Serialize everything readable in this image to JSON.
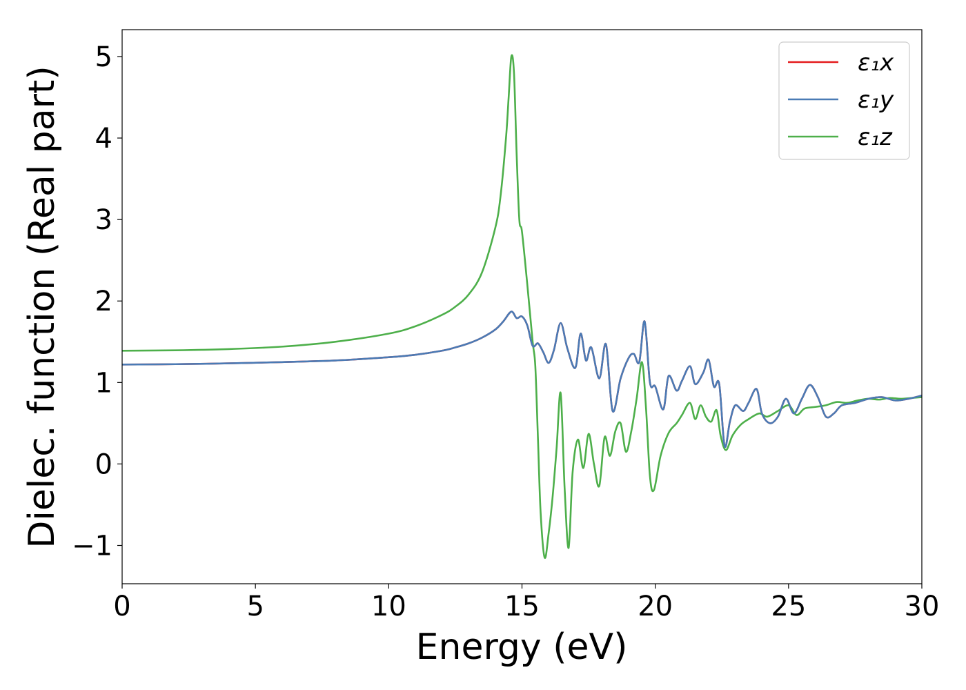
{
  "chart_data": {
    "type": "line",
    "title": "",
    "xlabel": "Energy (eV)",
    "ylabel": "Dielec. function (Real part)",
    "xlim": [
      0,
      30
    ],
    "ylim": [
      -1.47,
      5.33
    ],
    "xticks": [
      0,
      5,
      10,
      15,
      20,
      25,
      30
    ],
    "xtick_labels": [
      "0",
      "5",
      "10",
      "15",
      "20",
      "25",
      "30"
    ],
    "yticks": [
      -1,
      0,
      1,
      2,
      3,
      4,
      5
    ],
    "ytick_labels": [
      "−1",
      "0",
      "1",
      "2",
      "3",
      "4",
      "5"
    ],
    "grid": false,
    "legend_position": "top-right",
    "series": [
      {
        "name": "ε₁x",
        "color": "#e41a1c",
        "x": [
          0,
          2,
          4,
          6,
          8,
          10,
          11,
          12,
          12.5,
          13,
          13.5,
          14,
          14.3,
          14.6,
          14.8,
          15,
          15.2,
          15.4,
          15.6,
          15.8,
          16,
          16.2,
          16.45,
          16.7,
          17,
          17.2,
          17.4,
          17.6,
          17.9,
          18.15,
          18.4,
          18.7,
          19,
          19.2,
          19.4,
          19.6,
          19.8,
          20,
          20.3,
          20.5,
          20.8,
          21,
          21.3,
          21.5,
          21.8,
          22,
          22.2,
          22.4,
          22.6,
          22.8,
          23,
          23.3,
          23.5,
          23.8,
          24,
          24.3,
          24.6,
          24.9,
          25.2,
          25.5,
          25.8,
          26.1,
          26.4,
          26.7,
          27,
          27.5,
          28,
          28.5,
          29,
          29.5,
          30
        ],
        "values": [
          1.22,
          1.225,
          1.235,
          1.25,
          1.27,
          1.31,
          1.34,
          1.39,
          1.43,
          1.48,
          1.55,
          1.65,
          1.75,
          1.87,
          1.79,
          1.81,
          1.7,
          1.45,
          1.48,
          1.37,
          1.24,
          1.4,
          1.73,
          1.42,
          1.18,
          1.6,
          1.27,
          1.43,
          1.05,
          1.47,
          0.65,
          1.05,
          1.3,
          1.35,
          1.25,
          1.75,
          1.0,
          0.95,
          0.67,
          1.08,
          0.9,
          1.02,
          1.2,
          0.98,
          1.12,
          1.28,
          0.95,
          0.98,
          0.22,
          0.52,
          0.72,
          0.65,
          0.75,
          0.92,
          0.62,
          0.5,
          0.58,
          0.8,
          0.62,
          0.8,
          0.97,
          0.82,
          0.58,
          0.62,
          0.72,
          0.75,
          0.8,
          0.82,
          0.78,
          0.8,
          0.84
        ]
      },
      {
        "name": "ε₁y",
        "color": "#4a7bb5",
        "x": [
          0,
          2,
          4,
          6,
          8,
          10,
          11,
          12,
          12.5,
          13,
          13.5,
          14,
          14.3,
          14.6,
          14.8,
          15,
          15.2,
          15.4,
          15.6,
          15.8,
          16,
          16.2,
          16.45,
          16.7,
          17,
          17.2,
          17.4,
          17.6,
          17.9,
          18.15,
          18.4,
          18.7,
          19,
          19.2,
          19.4,
          19.6,
          19.8,
          20,
          20.3,
          20.5,
          20.8,
          21,
          21.3,
          21.5,
          21.8,
          22,
          22.2,
          22.4,
          22.6,
          22.8,
          23,
          23.3,
          23.5,
          23.8,
          24,
          24.3,
          24.6,
          24.9,
          25.2,
          25.5,
          25.8,
          26.1,
          26.4,
          26.7,
          27,
          27.5,
          28,
          28.5,
          29,
          29.5,
          30
        ],
        "values": [
          1.22,
          1.225,
          1.235,
          1.25,
          1.27,
          1.31,
          1.34,
          1.39,
          1.43,
          1.48,
          1.55,
          1.65,
          1.75,
          1.87,
          1.79,
          1.81,
          1.7,
          1.45,
          1.48,
          1.37,
          1.24,
          1.4,
          1.73,
          1.42,
          1.18,
          1.6,
          1.27,
          1.43,
          1.05,
          1.47,
          0.65,
          1.05,
          1.3,
          1.35,
          1.25,
          1.75,
          1.0,
          0.95,
          0.67,
          1.08,
          0.9,
          1.02,
          1.2,
          0.98,
          1.12,
          1.28,
          0.95,
          0.98,
          0.22,
          0.52,
          0.72,
          0.65,
          0.75,
          0.92,
          0.62,
          0.5,
          0.58,
          0.8,
          0.62,
          0.8,
          0.97,
          0.82,
          0.58,
          0.62,
          0.72,
          0.75,
          0.8,
          0.82,
          0.78,
          0.8,
          0.84
        ]
      },
      {
        "name": "ε₁z",
        "color": "#4daf4a",
        "x": [
          0,
          2,
          4,
          6,
          8,
          10,
          11,
          12,
          12.5,
          13,
          13.5,
          14,
          14.2,
          14.4,
          14.5,
          14.6,
          14.7,
          14.8,
          14.9,
          15,
          15.2,
          15.4,
          15.5,
          15.6,
          15.7,
          15.85,
          16,
          16.15,
          16.3,
          16.45,
          16.6,
          16.75,
          16.9,
          17.1,
          17.3,
          17.5,
          17.7,
          17.9,
          18.1,
          18.3,
          18.5,
          18.7,
          18.9,
          19.1,
          19.3,
          19.5,
          19.65,
          19.8,
          19.95,
          20.2,
          20.5,
          20.8,
          21,
          21.3,
          21.5,
          21.7,
          21.9,
          22.1,
          22.3,
          22.45,
          22.65,
          22.9,
          23.2,
          23.5,
          23.9,
          24.2,
          24.6,
          25,
          25.3,
          25.6,
          26,
          26.4,
          26.8,
          27.2,
          27.6,
          28,
          28.4,
          28.8,
          29.2,
          29.6,
          30
        ],
        "values": [
          1.39,
          1.395,
          1.41,
          1.44,
          1.5,
          1.6,
          1.69,
          1.83,
          1.93,
          2.08,
          2.35,
          2.9,
          3.3,
          4.0,
          4.5,
          5.0,
          4.8,
          3.8,
          3.0,
          2.85,
          2.2,
          1.5,
          1.2,
          0.3,
          -0.6,
          -1.15,
          -0.85,
          -0.4,
          0.2,
          0.87,
          -0.3,
          -1.03,
          -0.1,
          0.3,
          -0.05,
          0.37,
          0.0,
          -0.27,
          0.33,
          0.1,
          0.4,
          0.5,
          0.15,
          0.4,
          0.8,
          1.25,
          0.7,
          -0.15,
          -0.32,
          0.1,
          0.38,
          0.5,
          0.6,
          0.75,
          0.55,
          0.72,
          0.58,
          0.52,
          0.66,
          0.35,
          0.17,
          0.35,
          0.48,
          0.55,
          0.62,
          0.58,
          0.65,
          0.72,
          0.6,
          0.68,
          0.7,
          0.72,
          0.76,
          0.75,
          0.78,
          0.8,
          0.79,
          0.81,
          0.8,
          0.81,
          0.82
        ]
      }
    ]
  }
}
